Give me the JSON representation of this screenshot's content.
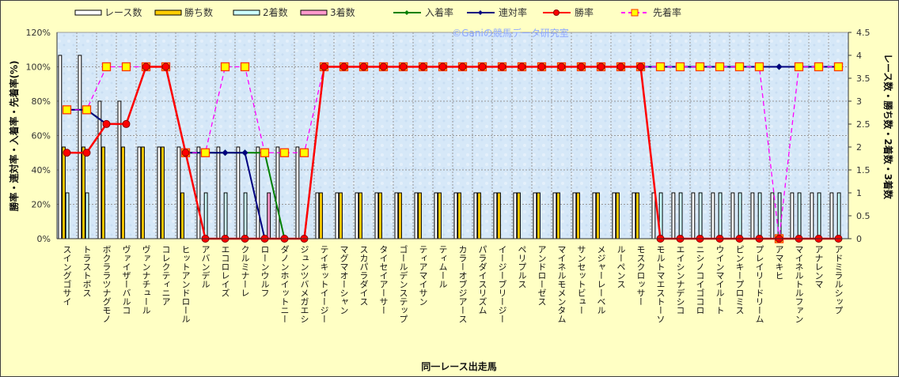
{
  "chart_data": {
    "type": "bar+line",
    "watermark": "©Ganiの競馬データ研究室",
    "xlabel": "同一レース出走馬",
    "ylabel_left": "勝率・連対率・入着率・先着率(%)",
    "ylabel_right": "レース数・勝ち数・2着数・3着数",
    "ylim_left": [
      0,
      120
    ],
    "ylim_right": [
      0,
      4.5
    ],
    "yticks_left": [
      "0%",
      "20%",
      "40%",
      "60%",
      "80%",
      "100%",
      "120%"
    ],
    "yticks_right": [
      "0",
      "0.5",
      "1",
      "1.5",
      "2",
      "2.5",
      "3",
      "3.5",
      "4",
      "4.5"
    ],
    "grid": true,
    "legend_position": "top",
    "legend": [
      "レース数",
      "勝ち数",
      "2着数",
      "3着数",
      "入着率",
      "連対率",
      "勝率",
      "先着率"
    ],
    "categories": [
      "スイングゴサイ",
      "トラストボス",
      "ボクララツナグモノ",
      "ヴァイザーバルコ",
      "ヴァンナチュール",
      "コレクティニア",
      "ヒットアンドロール",
      "アバンデル",
      "エコロレイズ",
      "クルミナーレ",
      "ローンウルフ",
      "ダノンホイットニー",
      "ジュンツバメガエシ",
      "テイキットイージー",
      "マグマオーシャン",
      "スカパラダイス",
      "タイセイアーサー",
      "ゴールデンステップ",
      "ティアマイサン",
      "ティムール",
      "カラーオブジアース",
      "パラダイスリズム",
      "イージーブリージー",
      "ペリプルス",
      "アンドローゼス",
      "マイネルモメンタム",
      "サンセットビュー",
      "メジャーレーベル",
      "ルーペンス",
      "モスクロッサー",
      "モルトマエストーソ",
      "エイシンナデシコ",
      "ニシノコイゴコロ",
      "ウインマイルート",
      "ピンキープロミス",
      "プレイリードリーム",
      "アマキヒ",
      "マイネルトルファン",
      "アナレンマ",
      "アドミラルシップ"
    ],
    "bars": [
      {
        "name": "レース数",
        "color": "#ffffff",
        "values": [
          4,
          4,
          3,
          3,
          2,
          2,
          2,
          2,
          2,
          2,
          2,
          2,
          2,
          1,
          1,
          1,
          1,
          1,
          1,
          1,
          1,
          1,
          1,
          1,
          1,
          1,
          1,
          1,
          1,
          1,
          1,
          1,
          1,
          1,
          1,
          1,
          1,
          1,
          1,
          1
        ]
      },
      {
        "name": "勝ち数",
        "color": "#ffcc00",
        "values": [
          2,
          2,
          2,
          2,
          2,
          2,
          1,
          0,
          0,
          0,
          0,
          0,
          0,
          1,
          1,
          1,
          1,
          1,
          1,
          1,
          1,
          1,
          1,
          1,
          1,
          1,
          1,
          1,
          1,
          1,
          0,
          0,
          0,
          0,
          0,
          0,
          0,
          0,
          0,
          0
        ]
      },
      {
        "name": "2着数",
        "color": "#ccffff",
        "values": [
          1,
          1,
          0,
          0,
          0,
          0,
          0,
          1,
          1,
          1,
          0,
          0,
          0,
          0,
          0,
          0,
          0,
          0,
          0,
          0,
          0,
          0,
          0,
          0,
          0,
          0,
          0,
          0,
          0,
          0,
          1,
          1,
          1,
          1,
          1,
          1,
          1,
          1,
          1,
          1
        ]
      },
      {
        "name": "3着数",
        "color": "#ff99cc",
        "values": [
          0,
          0,
          0,
          0,
          0,
          0,
          0,
          0,
          0,
          0,
          1,
          0,
          0,
          0,
          0,
          0,
          0,
          0,
          0,
          0,
          0,
          0,
          0,
          0,
          0,
          0,
          0,
          0,
          0,
          0,
          0,
          0,
          0,
          0,
          0,
          0,
          0,
          0,
          0,
          0
        ]
      }
    ],
    "lines": [
      {
        "name": "入着率",
        "color": "#008000",
        "marker": "diamond",
        "dash": false,
        "values": [
          75,
          75,
          66.7,
          66.7,
          100,
          100,
          50,
          50,
          50,
          50,
          50,
          0,
          0,
          100,
          100,
          100,
          100,
          100,
          100,
          100,
          100,
          100,
          100,
          100,
          100,
          100,
          100,
          100,
          100,
          100,
          100,
          100,
          100,
          100,
          100,
          100,
          100,
          100,
          100,
          100
        ]
      },
      {
        "name": "連対率",
        "color": "#000080",
        "marker": "diamond",
        "dash": false,
        "values": [
          75,
          75,
          66.7,
          66.7,
          100,
          100,
          50,
          50,
          50,
          50,
          0,
          0,
          0,
          100,
          100,
          100,
          100,
          100,
          100,
          100,
          100,
          100,
          100,
          100,
          100,
          100,
          100,
          100,
          100,
          100,
          100,
          100,
          100,
          100,
          100,
          100,
          100,
          100,
          100,
          100
        ]
      },
      {
        "name": "勝率",
        "color": "#ff0000",
        "marker": "circle",
        "dash": false,
        "values": [
          50,
          50,
          66.7,
          66.7,
          100,
          100,
          50,
          0,
          0,
          0,
          0,
          0,
          0,
          100,
          100,
          100,
          100,
          100,
          100,
          100,
          100,
          100,
          100,
          100,
          100,
          100,
          100,
          100,
          100,
          100,
          0,
          0,
          0,
          0,
          0,
          0,
          0,
          0,
          0,
          0
        ]
      },
      {
        "name": "先着率",
        "color": "#ff00ff",
        "marker": "square",
        "dash": true,
        "values": [
          75,
          75,
          100,
          100,
          100,
          100,
          50,
          50,
          100,
          100,
          50,
          50,
          50,
          100,
          100,
          100,
          100,
          100,
          100,
          100,
          100,
          100,
          100,
          100,
          100,
          100,
          100,
          100,
          100,
          100,
          100,
          100,
          100,
          100,
          100,
          100,
          0,
          100,
          100,
          100
        ]
      }
    ]
  }
}
